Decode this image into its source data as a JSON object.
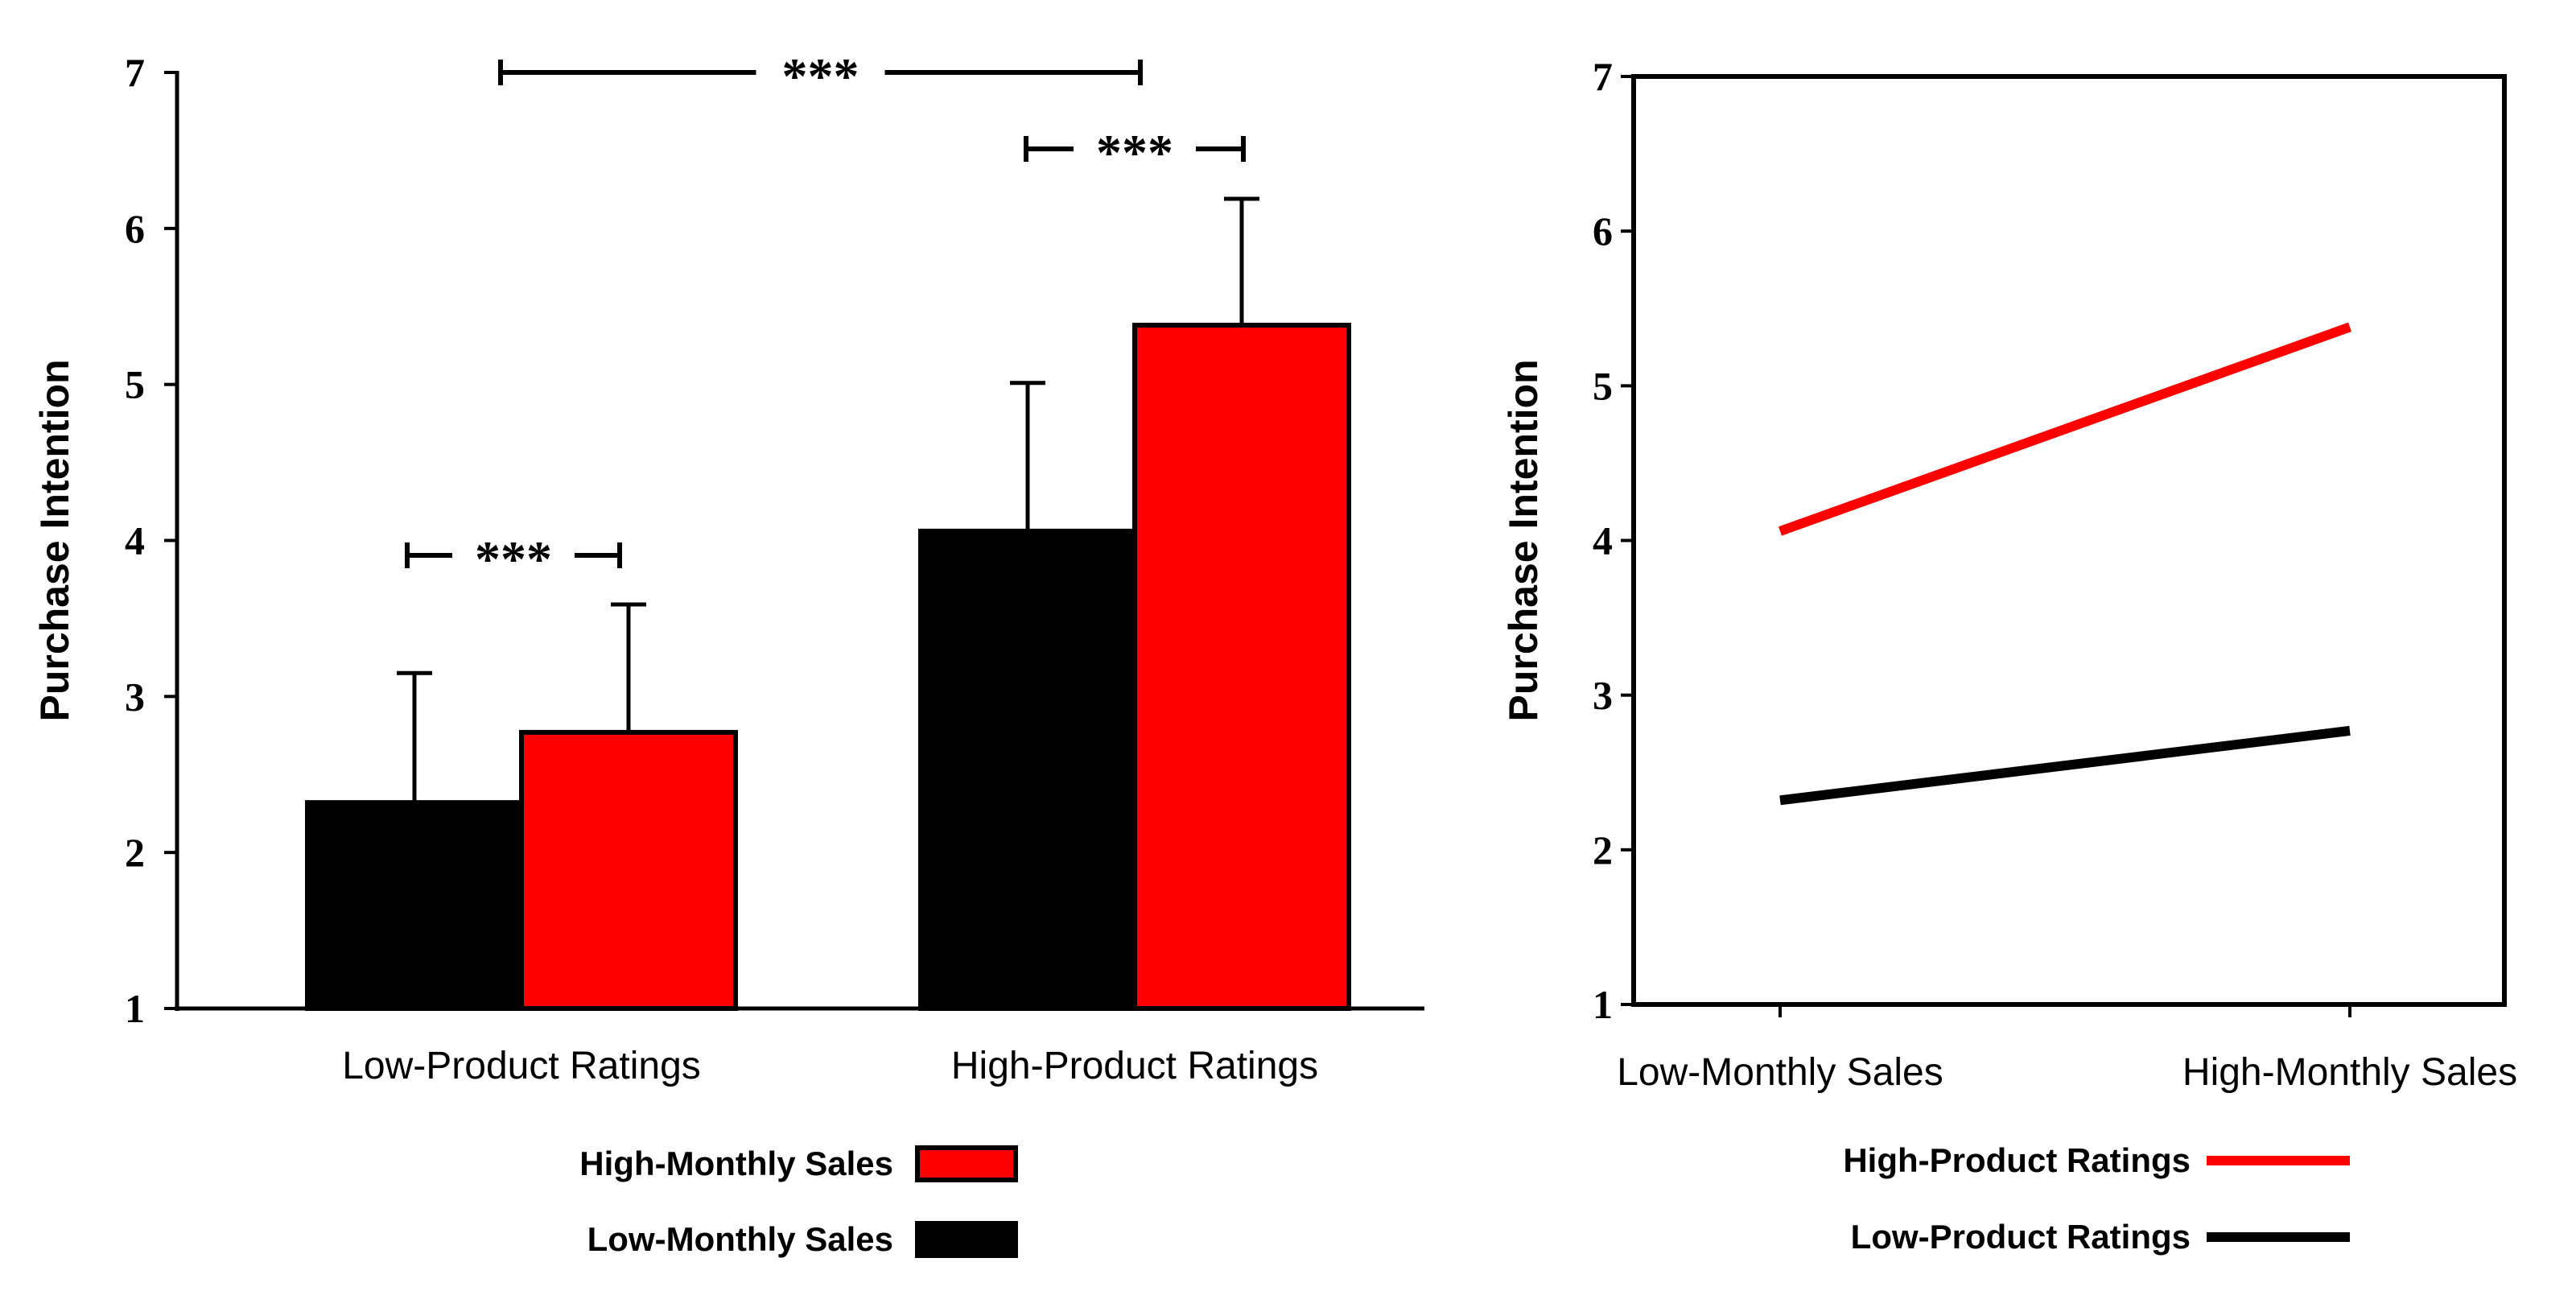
{
  "chart_data": [
    {
      "type": "bar",
      "ylabel": "Purchase Intention",
      "ylim": [
        1,
        7
      ],
      "yticks": [
        1,
        2,
        3,
        4,
        5,
        6,
        7
      ],
      "categories": [
        "Low-Product Ratings",
        "High-Product Ratings"
      ],
      "series": [
        {
          "name": "Low-Monthly Sales",
          "color": "#000000",
          "values": [
            2.32,
            4.06
          ],
          "error": [
            0.83,
            0.95
          ]
        },
        {
          "name": "High-Monthly Sales",
          "color": "#ff0000",
          "values": [
            2.77,
            5.38
          ],
          "error": [
            0.82,
            0.81
          ]
        }
      ],
      "legend": {
        "placement": "bottom",
        "order": [
          "High-Monthly Sales",
          "Low-Monthly Sales"
        ]
      },
      "significance": [
        {
          "label": "***",
          "between": "Low-Product Ratings: Low-Monthly Sales vs High-Monthly Sales"
        },
        {
          "label": "***",
          "between": "High-Product Ratings: Low-Monthly Sales vs High-Monthly Sales"
        },
        {
          "label": "***",
          "between": "Low-Product Ratings vs High-Product Ratings"
        }
      ]
    },
    {
      "type": "line",
      "ylabel": "Purchase Intention",
      "ylim": [
        1,
        7
      ],
      "yticks": [
        1,
        2,
        3,
        4,
        5,
        6,
        7
      ],
      "categories": [
        "Low-Monthly Sales",
        "High-Monthly Sales"
      ],
      "series": [
        {
          "name": "High-Product Ratings",
          "color": "#ff0000",
          "values": [
            4.06,
            5.38
          ]
        },
        {
          "name": "Low-Product Ratings",
          "color": "#000000",
          "values": [
            2.32,
            2.77
          ]
        }
      ],
      "legend": {
        "placement": "bottom"
      },
      "grid": false
    }
  ]
}
